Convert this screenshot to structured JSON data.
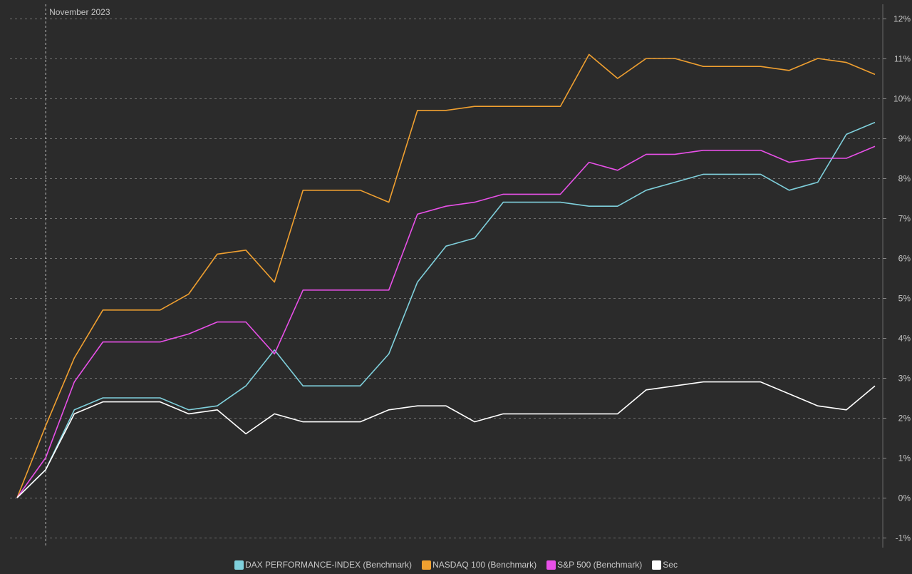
{
  "chart_data": {
    "type": "line",
    "annotation": "November 2023",
    "annotation_index": 1,
    "ylim": [
      -1,
      12
    ],
    "ytick_values": [
      -1,
      0,
      1,
      2,
      3,
      4,
      5,
      6,
      7,
      8,
      9,
      10,
      11,
      12
    ],
    "ytick_labels": [
      "-1%",
      "0%",
      "1%",
      "2%",
      "3%",
      "4%",
      "5%",
      "6%",
      "7%",
      "8%",
      "9%",
      "10%",
      "11%",
      "12%"
    ],
    "grid": true,
    "legend_position": "bottom-center",
    "series": [
      {
        "name": "DAX PERFORMANCE-INDEX (Benchmark)",
        "color": "#7fd0dc",
        "values": [
          0,
          0.7,
          2.2,
          2.5,
          2.5,
          2.5,
          2.2,
          2.3,
          2.8,
          3.7,
          2.8,
          2.8,
          2.8,
          3.6,
          5.4,
          6.3,
          6.5,
          7.4,
          7.4,
          7.4,
          7.3,
          7.3,
          7.7,
          7.9,
          8.1,
          8.1,
          8.1,
          7.7,
          7.9,
          9.1,
          9.4
        ]
      },
      {
        "name": "NASDAQ 100 (Benchmark)",
        "color": "#f0a030",
        "values": [
          0,
          1.8,
          3.5,
          4.7,
          4.7,
          4.7,
          5.1,
          6.1,
          6.2,
          5.4,
          7.7,
          7.7,
          7.7,
          7.4,
          9.7,
          9.7,
          9.8,
          9.8,
          9.8,
          9.8,
          11.1,
          10.5,
          11.0,
          11.0,
          10.8,
          10.8,
          10.8,
          10.7,
          11.0,
          10.9,
          10.6
        ]
      },
      {
        "name": "S&P 500 (Benchmark)",
        "color": "#e850e8",
        "values": [
          0,
          1.0,
          2.9,
          3.9,
          3.9,
          3.9,
          4.1,
          4.4,
          4.4,
          3.6,
          5.2,
          5.2,
          5.2,
          5.2,
          7.1,
          7.3,
          7.4,
          7.6,
          7.6,
          7.6,
          8.4,
          8.2,
          8.6,
          8.6,
          8.7,
          8.7,
          8.7,
          8.4,
          8.5,
          8.5,
          8.8
        ]
      },
      {
        "name": "Sec",
        "color": "#ffffff",
        "values": [
          0,
          0.7,
          2.1,
          2.4,
          2.4,
          2.4,
          2.1,
          2.2,
          1.6,
          2.1,
          1.9,
          1.9,
          1.9,
          2.2,
          2.3,
          2.3,
          1.9,
          2.1,
          2.1,
          2.1,
          2.1,
          2.1,
          2.7,
          2.8,
          2.9,
          2.9,
          2.9,
          2.6,
          2.3,
          2.2,
          2.8
        ]
      }
    ]
  }
}
